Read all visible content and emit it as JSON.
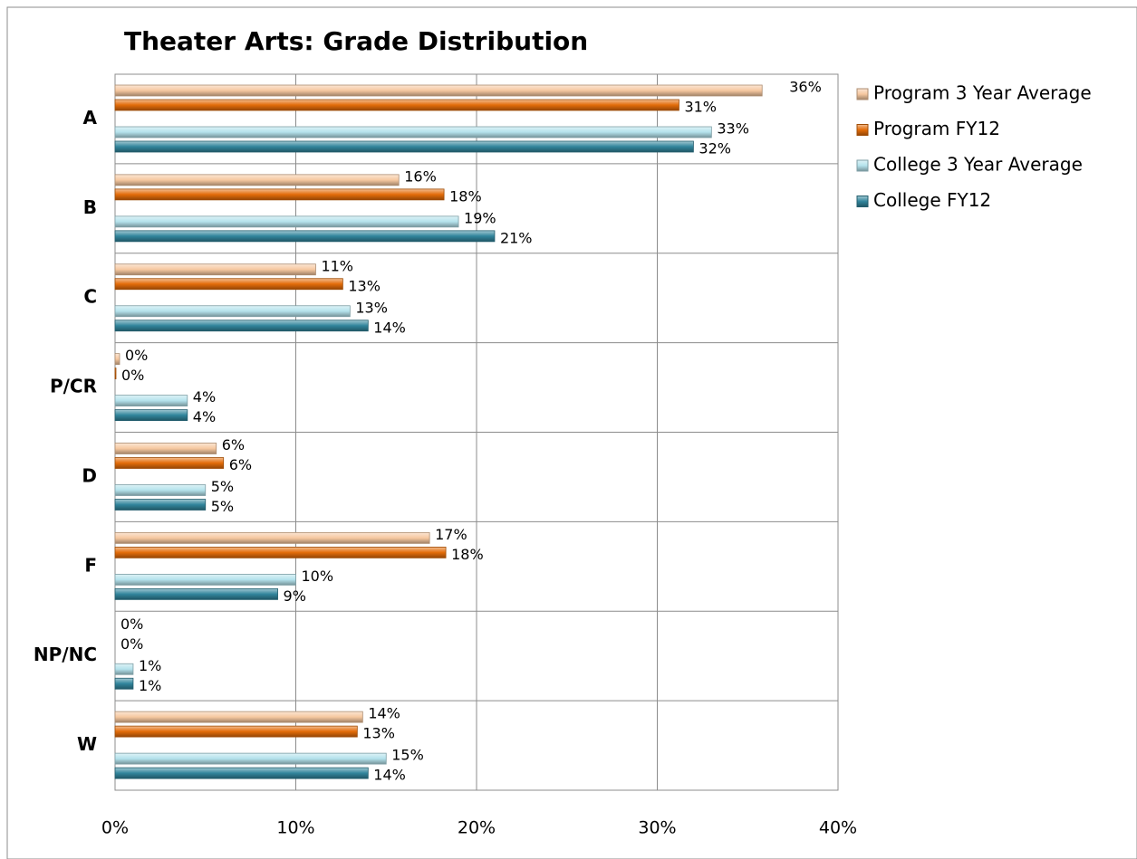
{
  "chart_data": {
    "type": "hbar",
    "title": "Theater Arts: Grade Distribution",
    "categories": [
      "A",
      "B",
      "C",
      "P/CR",
      "D",
      "F",
      "NP/NC",
      "W"
    ],
    "series": [
      {
        "name": "Program 3 Year Average",
        "color": "#f6c8a0",
        "values": [
          35.8,
          15.7,
          11.1,
          0.25,
          5.6,
          17.4,
          0,
          13.7
        ],
        "value_labels": [
          "36%",
          "16%",
          "11%",
          "0%",
          "6%",
          "17%",
          "0%",
          "14%"
        ]
      },
      {
        "name": "Program FY12",
        "color": "#e36c09",
        "values": [
          31.2,
          18.2,
          12.6,
          0.05,
          6.0,
          18.3,
          0,
          13.4
        ],
        "value_labels": [
          "31%",
          "18%",
          "13%",
          "0%",
          "6%",
          "18%",
          "0%",
          "13%"
        ]
      },
      {
        "name": "College 3 Year Average",
        "color": "#b4e2ec",
        "values": [
          33.0,
          19.0,
          13.0,
          4.0,
          5.0,
          10.0,
          1.0,
          15.0
        ],
        "value_labels": [
          "33%",
          "19%",
          "13%",
          "4%",
          "5%",
          "10%",
          "1%",
          "15%"
        ]
      },
      {
        "name": "College FY12",
        "color": "#31859c",
        "values": [
          32.0,
          21.0,
          14.0,
          4.0,
          5.0,
          9.0,
          1.0,
          14.0
        ],
        "value_labels": [
          "32%",
          "21%",
          "14%",
          "4%",
          "5%",
          "9%",
          "1%",
          "14%"
        ]
      }
    ],
    "xlim": [
      0,
      40
    ],
    "xticks": [
      {
        "value": 0,
        "label": "0%"
      },
      {
        "value": 10,
        "label": "10%"
      },
      {
        "value": 20,
        "label": "20%"
      },
      {
        "value": 30,
        "label": "30%"
      },
      {
        "value": 40,
        "label": "40%"
      }
    ],
    "grid": true,
    "legend": "right"
  }
}
